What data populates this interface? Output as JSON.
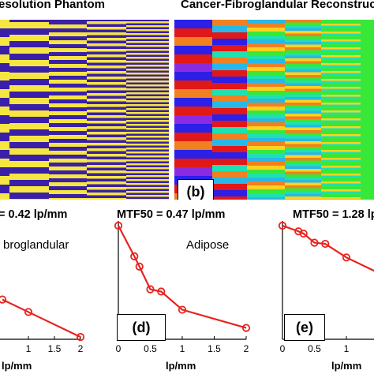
{
  "titles": {
    "left": "esolution Phantom",
    "right": "Cancer-Fibroglandular Reconstructi"
  },
  "panel_tags": {
    "b": "(b)",
    "d": "(d)",
    "e": "(e)"
  },
  "colors": {
    "phantom_blue": "#3a1fa8",
    "phantom_yellow": "#f5e642",
    "curve": "#e8231e",
    "axis": "#000000"
  },
  "phantom_b_colors": [
    "#2c1fe6",
    "#e01818",
    "#f08020",
    "#28b8e8",
    "#38e838",
    "#8a2be2",
    "#1fe0b0",
    "#ffd21f"
  ],
  "plots": [
    {
      "id": "c",
      "mtf_label": "= 0.42 lp/mm",
      "annotation": "broglandular",
      "tag": "",
      "xlabel": "lp/mm",
      "xticks": [
        "1",
        "1.5",
        "2"
      ],
      "x": [
        0.5,
        1.0,
        2.0
      ],
      "y": [
        0.35,
        0.24,
        0.02
      ]
    },
    {
      "id": "d",
      "mtf_label": "MTF50 = 0.47 lp/mm",
      "annotation": "Adipose",
      "tag": "(d)",
      "xlabel": "lp/mm",
      "xticks": [
        "0",
        "0.5",
        "1",
        "1.5",
        "2"
      ],
      "x": [
        0.0,
        0.25,
        0.33,
        0.5,
        0.67,
        1.0,
        2.0
      ],
      "y": [
        1.0,
        0.73,
        0.64,
        0.44,
        0.42,
        0.26,
        0.1
      ]
    },
    {
      "id": "e",
      "mtf_label": "MTF50 = 1.28 lp/",
      "annotation": "",
      "tag": "(e)",
      "xlabel": "lp/mm",
      "xticks": [
        "0",
        "0.5",
        "1",
        "1"
      ],
      "x": [
        0.0,
        0.25,
        0.33,
        0.5,
        0.67,
        1.0,
        2.0
      ],
      "y": [
        1.0,
        0.95,
        0.93,
        0.85,
        0.84,
        0.72,
        0.45
      ]
    }
  ]
}
